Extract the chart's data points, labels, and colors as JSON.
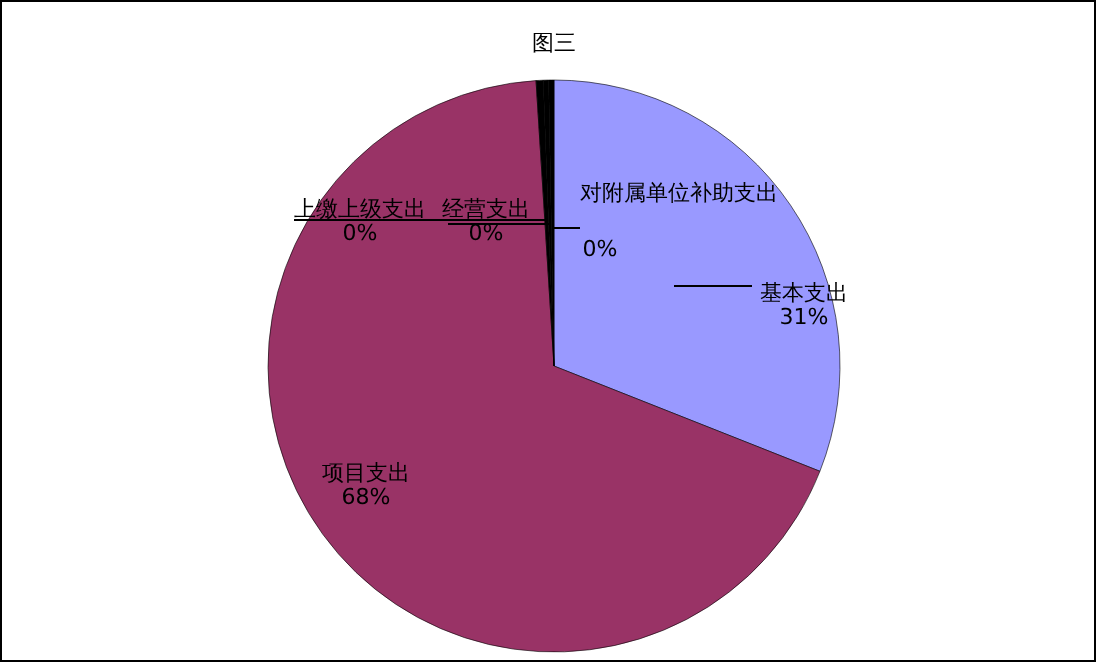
{
  "chart_data": {
    "type": "pie",
    "title": "图三",
    "categories": [
      "基本支出",
      "项目支出",
      "上缴上级支出",
      "经营支出",
      "对附属单位补助支出"
    ],
    "values": [
      31,
      68,
      0.4,
      0.3,
      0.3
    ],
    "value_labels": [
      "31%",
      "68%",
      "0%",
      "0%",
      "0%"
    ],
    "colors": [
      "#9999ff",
      "#993366",
      "#000000",
      "#000000",
      "#000000"
    ]
  }
}
